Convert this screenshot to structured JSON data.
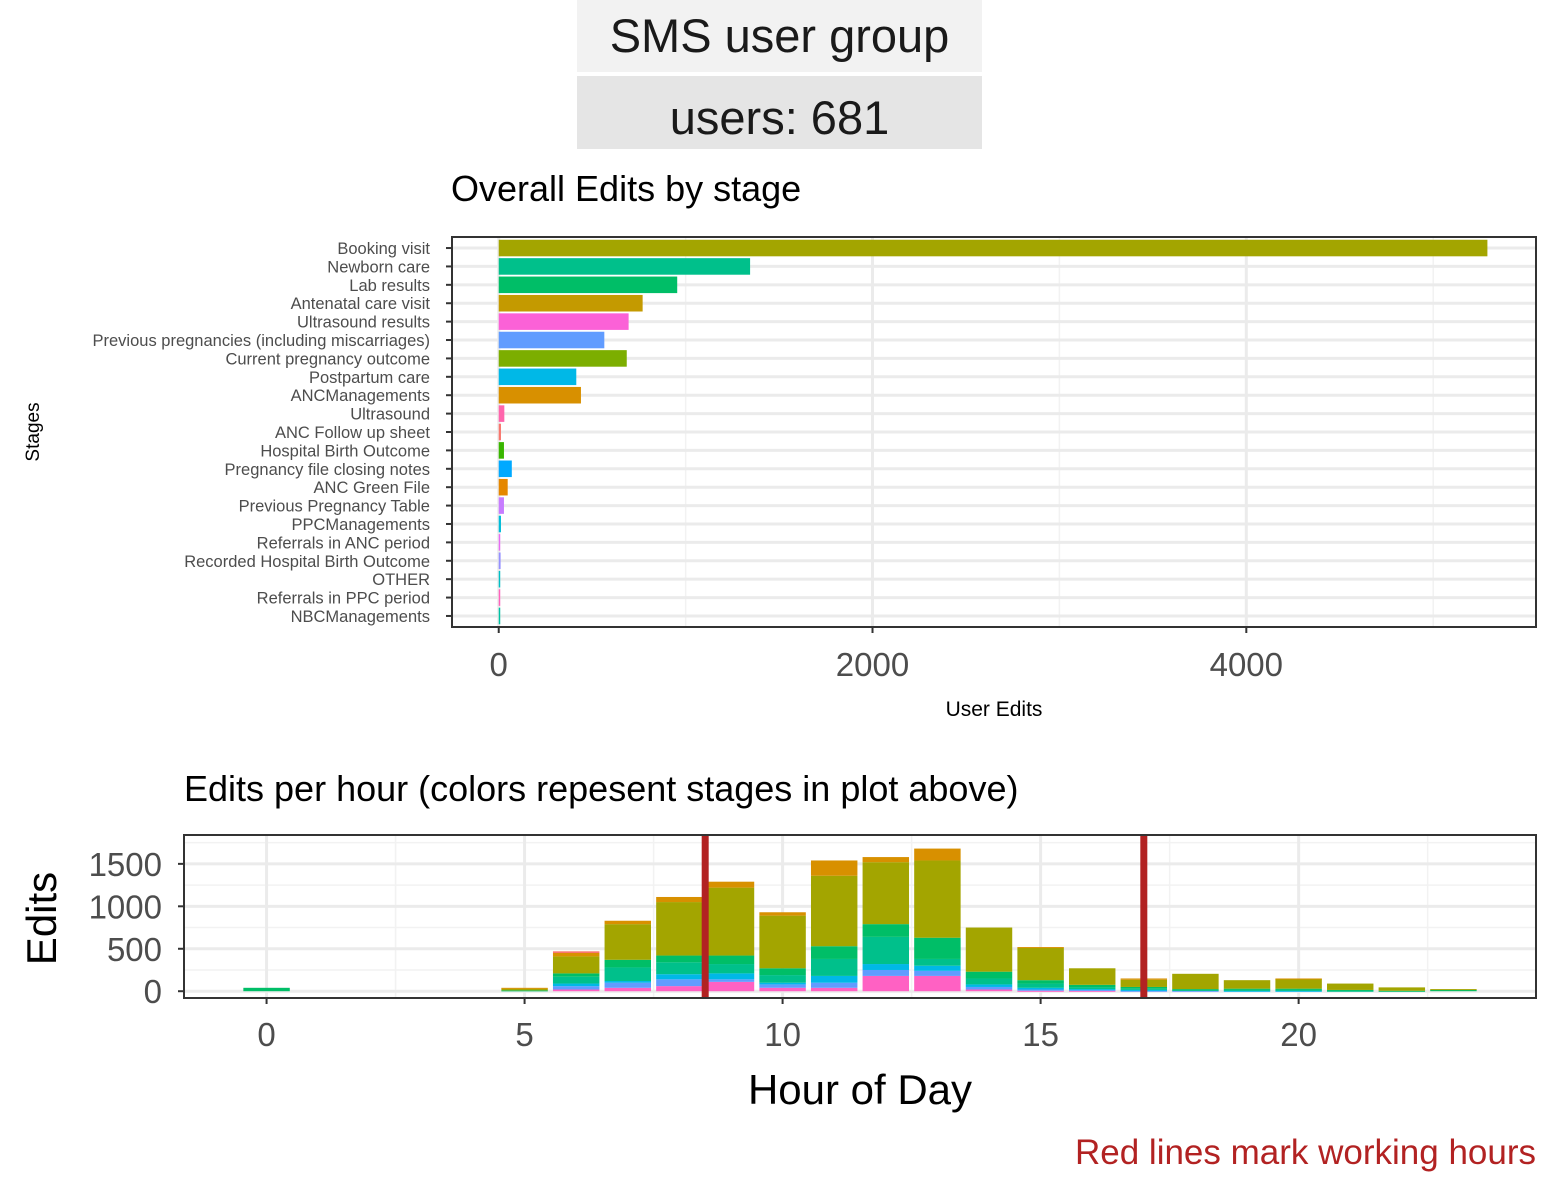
{
  "header": {
    "group_label": "SMS user group",
    "users_label": "users: 681"
  },
  "caption": "Red lines mark working hours",
  "colors": {
    "working_hours": "#b22222",
    "panel_border": "#333333",
    "grid": "#ebebeb"
  },
  "chart_data": [
    {
      "type": "bar",
      "orientation": "horizontal",
      "title": "Overall Edits by stage",
      "xlabel": "User Edits",
      "ylabel": "Stages",
      "xlim": [
        -250,
        5550
      ],
      "xticks": [
        0,
        2000,
        4000
      ],
      "grid": true,
      "categories": [
        "Booking visit",
        "Newborn care",
        "Lab results",
        "Antenatal care visit",
        "Ultrasound results",
        "Previous pregnancies (including miscarriages)",
        "Current pregnancy outcome",
        "Postpartum care",
        "ANCManagements",
        "Ultrasound",
        "ANC Follow up sheet",
        "Hospital Birth Outcome",
        "Pregnancy file closing notes",
        "ANC Green File",
        "Previous Pregnancy Table",
        "PPCManagements",
        "Referrals in ANC period",
        "Recorded Hospital Birth Outcome",
        "OTHER",
        "Referrals in PPC period",
        "NBCManagements"
      ],
      "values": [
        5290,
        1345,
        955,
        770,
        695,
        565,
        685,
        415,
        440,
        30,
        12,
        28,
        70,
        48,
        28,
        12,
        8,
        10,
        8,
        6,
        3
      ],
      "colors": [
        "#a3a500",
        "#00c08b",
        "#00be67",
        "#c49a00",
        "#fb61d7",
        "#619cff",
        "#7cae00",
        "#00b8e7",
        "#d89000",
        "#ff65ac",
        "#f8766d",
        "#39b600",
        "#00a9ff",
        "#e58700",
        "#c77cff",
        "#00bcd8",
        "#e76bf3",
        "#9590ff",
        "#00bfc4",
        "#ff62bc",
        "#00c1a3"
      ]
    },
    {
      "type": "bar",
      "stacked": true,
      "title": "Edits per hour (colors repesent stages in plot above)",
      "xlabel": "Hour of Day",
      "ylabel": "Edits",
      "xlim": [
        -1.6,
        24.6
      ],
      "ylim": [
        -80,
        1840
      ],
      "xticks": [
        0,
        5,
        10,
        15,
        20
      ],
      "yticks": [
        0,
        500,
        1000,
        1500
      ],
      "grid": true,
      "working_hours_lines": [
        8.5,
        17
      ],
      "x": [
        0,
        1,
        2,
        3,
        4,
        5,
        6,
        7,
        8,
        9,
        10,
        11,
        12,
        13,
        14,
        15,
        16,
        17,
        18,
        19,
        20,
        21,
        22,
        23
      ],
      "series": [
        {
          "color": "#ff61c3",
          "values": [
            0,
            0,
            0,
            0,
            0,
            0,
            20,
            40,
            60,
            110,
            40,
            40,
            180,
            180,
            20,
            5,
            5,
            0,
            0,
            0,
            0,
            0,
            0,
            0
          ]
        },
        {
          "color": "#619cff",
          "values": [
            0,
            0,
            0,
            0,
            0,
            0,
            40,
            60,
            80,
            30,
            40,
            60,
            70,
            60,
            30,
            15,
            10,
            5,
            5,
            0,
            0,
            0,
            0,
            0
          ]
        },
        {
          "color": "#00b8e7",
          "values": [
            0,
            0,
            0,
            0,
            0,
            0,
            30,
            20,
            60,
            70,
            20,
            80,
            70,
            60,
            30,
            20,
            10,
            10,
            0,
            5,
            5,
            0,
            0,
            0
          ]
        },
        {
          "color": "#00c08b",
          "values": [
            0,
            0,
            0,
            0,
            0,
            0,
            80,
            160,
            140,
            110,
            90,
            200,
            320,
            80,
            70,
            50,
            20,
            15,
            10,
            10,
            10,
            5,
            0,
            0
          ]
        },
        {
          "color": "#00be67",
          "values": [
            40,
            0,
            0,
            0,
            0,
            10,
            40,
            90,
            80,
            100,
            80,
            150,
            150,
            250,
            80,
            40,
            30,
            20,
            10,
            15,
            15,
            10,
            5,
            15
          ]
        },
        {
          "color": "#a3a500",
          "values": [
            0,
            0,
            0,
            0,
            0,
            20,
            200,
            420,
            630,
            800,
            620,
            830,
            730,
            910,
            520,
            380,
            195,
            85,
            180,
            100,
            115,
            75,
            40,
            10
          ]
        },
        {
          "color": "#d89000",
          "values": [
            0,
            0,
            0,
            0,
            0,
            10,
            40,
            40,
            60,
            70,
            40,
            180,
            60,
            140,
            0,
            10,
            0,
            15,
            0,
            0,
            5,
            0,
            0,
            0
          ]
        },
        {
          "color": "#f8766d",
          "values": [
            0,
            0,
            0,
            0,
            0,
            0,
            20,
            0,
            0,
            0,
            0,
            0,
            0,
            0,
            0,
            0,
            0,
            0,
            0,
            0,
            0,
            0,
            0,
            0
          ]
        }
      ]
    }
  ]
}
